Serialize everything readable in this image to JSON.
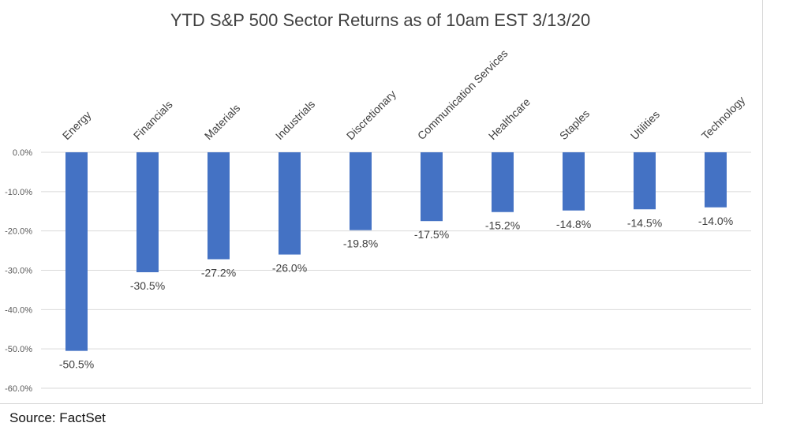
{
  "chart_data": {
    "type": "bar",
    "title": "YTD S&P 500 Sector Returns as of 10am EST 3/13/20",
    "categories": [
      "Energy",
      "Financials",
      "Materials",
      "Industrials",
      "Discretionary",
      "Communication Services",
      "Healthcare",
      "Staples",
      "Utilities",
      "Technology"
    ],
    "values": [
      -50.5,
      -30.5,
      -27.2,
      -26.0,
      -19.8,
      -17.5,
      -15.2,
      -14.8,
      -14.5,
      -14.0
    ],
    "data_labels": [
      "-50.5%",
      "-30.5%",
      "-27.2%",
      "-26.0%",
      "-19.8%",
      "-17.5%",
      "-15.2%",
      "-14.8%",
      "-14.5%",
      "-14.0%"
    ],
    "ylim": [
      -60,
      0
    ],
    "yticks": [
      0,
      -10,
      -20,
      -30,
      -40,
      -50,
      -60
    ],
    "ytick_labels": [
      "0.0%",
      "-10.0%",
      "-20.0%",
      "-30.0%",
      "-40.0%",
      "-50.0%",
      "-60.0%"
    ],
    "grid": true,
    "bar_color": "#4472c4",
    "xlabel": "",
    "ylabel": ""
  },
  "source": "Source: FactSet"
}
